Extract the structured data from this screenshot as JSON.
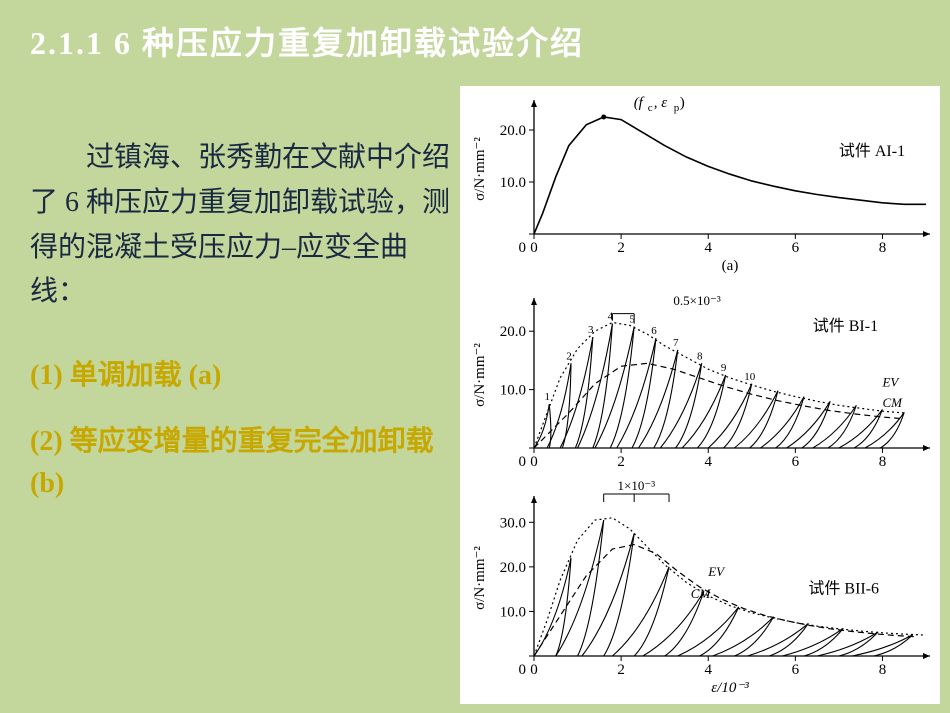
{
  "title": "2.1.1  6 种压应力重复加卸载试验介绍",
  "intro": "过镇海、张秀勤在文献中介绍了 6 种压应力重复加卸载试验，测得的混凝土受压应力–应变全曲线：",
  "item1": "(1) 单调加载 (a)",
  "item2": "(2) 等应变增量的重复完全加卸载 (b)",
  "colors": {
    "slide_bg": "#c3d69b",
    "title_color": "#ffffff",
    "body_color": "#1a2942",
    "item_color": "#c7a800",
    "chart_bg": "#ffffff",
    "axis_color": "#000000",
    "curve_color": "#000000"
  },
  "chart_a": {
    "type": "line",
    "specimen_label": "试件 AI-1",
    "peak_label": "(f_c, ε_p)",
    "sub_label": "(a)",
    "ylabel": "σ/N·mm⁻²",
    "xlim": [
      0,
      9
    ],
    "ylim": [
      0,
      25
    ],
    "xticks": [
      0,
      2,
      4,
      6,
      8
    ],
    "yticks": [
      0,
      10.0,
      20.0
    ],
    "ytick_labels": [
      "0",
      "10.0",
      "20.0"
    ],
    "curve": [
      [
        0,
        0
      ],
      [
        0.2,
        4
      ],
      [
        0.5,
        11
      ],
      [
        0.8,
        17
      ],
      [
        1.2,
        21
      ],
      [
        1.6,
        22.5
      ],
      [
        2.0,
        22
      ],
      [
        2.5,
        19.5
      ],
      [
        3.0,
        17
      ],
      [
        3.5,
        14.8
      ],
      [
        4.0,
        13
      ],
      [
        4.5,
        11.5
      ],
      [
        5.0,
        10.2
      ],
      [
        5.5,
        9.2
      ],
      [
        6.0,
        8.3
      ],
      [
        6.5,
        7.6
      ],
      [
        7.0,
        7.0
      ],
      [
        7.5,
        6.5
      ],
      [
        8.0,
        6.0
      ],
      [
        8.5,
        5.7
      ],
      [
        9.0,
        5.7
      ]
    ],
    "peak_marker": [
      1.6,
      22.5
    ]
  },
  "chart_b": {
    "type": "line",
    "specimen_label": "试件 BI-1",
    "ylabel": "σ/N·mm⁻²",
    "xlim": [
      0,
      9
    ],
    "ylim": [
      0,
      25
    ],
    "xticks": [
      0,
      2,
      4,
      6,
      8
    ],
    "yticks": [
      0,
      10.0,
      20.0
    ],
    "ytick_labels": [
      "0",
      "10.0",
      "20.0"
    ],
    "increment_label": "0.5×10⁻³",
    "ev_label": "EV",
    "cm_label": "CM",
    "envelope": [
      [
        0,
        0
      ],
      [
        0.3,
        6
      ],
      [
        0.6,
        12
      ],
      [
        1.0,
        17
      ],
      [
        1.4,
        20
      ],
      [
        1.8,
        21.5
      ],
      [
        2.2,
        21
      ],
      [
        2.6,
        19.5
      ],
      [
        3.0,
        17.5
      ],
      [
        3.5,
        15.5
      ],
      [
        4.0,
        13.5
      ],
      [
        4.5,
        12
      ],
      [
        5.0,
        10.8
      ],
      [
        5.5,
        9.7
      ],
      [
        6.0,
        8.8
      ],
      [
        6.5,
        8.0
      ],
      [
        7.0,
        7.3
      ],
      [
        7.5,
        6.8
      ],
      [
        8.0,
        6.3
      ],
      [
        8.5,
        6.0
      ]
    ],
    "cm_curve": [
      [
        0,
        0
      ],
      [
        0.8,
        6
      ],
      [
        1.4,
        11
      ],
      [
        2.0,
        14
      ],
      [
        2.6,
        14.5
      ],
      [
        3.2,
        13.5
      ],
      [
        3.8,
        12
      ],
      [
        4.4,
        10.5
      ],
      [
        5.0,
        9.2
      ],
      [
        5.6,
        8.1
      ],
      [
        6.2,
        7.2
      ],
      [
        6.8,
        6.4
      ],
      [
        7.4,
        5.8
      ],
      [
        8.0,
        5.3
      ],
      [
        8.5,
        5.0
      ]
    ],
    "cycles": [
      {
        "base": 0.0,
        "peak_x": 0.35,
        "peak_y": 7.5,
        "n": "1"
      },
      {
        "base": 0.3,
        "peak_x": 0.85,
        "peak_y": 14.5,
        "n": "2"
      },
      {
        "base": 0.6,
        "peak_x": 1.35,
        "peak_y": 19.0,
        "n": "3"
      },
      {
        "base": 1.0,
        "peak_x": 1.8,
        "peak_y": 21.3,
        "n": "4"
      },
      {
        "base": 1.4,
        "peak_x": 2.3,
        "peak_y": 20.8,
        "n": "5"
      },
      {
        "base": 1.9,
        "peak_x": 2.8,
        "peak_y": 18.8,
        "n": "6"
      },
      {
        "base": 2.4,
        "peak_x": 3.3,
        "peak_y": 16.8,
        "n": "7"
      },
      {
        "base": 2.9,
        "peak_x": 3.85,
        "peak_y": 14.5,
        "n": "8"
      },
      {
        "base": 3.4,
        "peak_x": 4.4,
        "peak_y": 12.5,
        "n": "9"
      },
      {
        "base": 4.0,
        "peak_x": 5.0,
        "peak_y": 11.0,
        "n": "10"
      },
      {
        "base": 4.6,
        "peak_x": 5.6,
        "peak_y": 9.8,
        "n": ""
      },
      {
        "base": 5.2,
        "peak_x": 6.2,
        "peak_y": 8.8,
        "n": ""
      },
      {
        "base": 5.8,
        "peak_x": 6.8,
        "peak_y": 8.0,
        "n": ""
      },
      {
        "base": 6.4,
        "peak_x": 7.4,
        "peak_y": 7.3,
        "n": ""
      },
      {
        "base": 7.0,
        "peak_x": 8.0,
        "peak_y": 6.6,
        "n": ""
      },
      {
        "base": 7.6,
        "peak_x": 8.5,
        "peak_y": 6.1,
        "n": ""
      }
    ]
  },
  "chart_c": {
    "type": "line",
    "specimen_label": "试件 BII-6",
    "ylabel": "σ/N·mm⁻²",
    "xlabel": "ε/10⁻³",
    "xlim": [
      0,
      9
    ],
    "ylim": [
      0,
      35
    ],
    "xticks": [
      0,
      2,
      4,
      6,
      8
    ],
    "yticks": [
      0,
      10.0,
      20.0,
      30.0
    ],
    "ytick_labels": [
      "0",
      "10.0",
      "20.0",
      "30.0"
    ],
    "increment_label": "1×10⁻³",
    "ev_label": "EV",
    "cm_label": "CM",
    "envelope": [
      [
        0,
        0
      ],
      [
        0.3,
        8
      ],
      [
        0.6,
        17
      ],
      [
        1.0,
        26
      ],
      [
        1.4,
        30.5
      ],
      [
        1.8,
        31
      ],
      [
        2.2,
        28.5
      ],
      [
        2.6,
        24.5
      ],
      [
        3.0,
        20.5
      ],
      [
        3.5,
        16.5
      ],
      [
        4.0,
        13.5
      ],
      [
        4.5,
        11.3
      ],
      [
        5.0,
        9.7
      ],
      [
        5.5,
        8.5
      ],
      [
        6.0,
        7.5
      ],
      [
        6.5,
        6.7
      ],
      [
        7.0,
        6.1
      ],
      [
        7.5,
        5.6
      ],
      [
        8.0,
        5.2
      ],
      [
        8.5,
        4.9
      ],
      [
        9.0,
        4.7
      ]
    ],
    "cm_curve": [
      [
        0,
        0
      ],
      [
        0.6,
        9
      ],
      [
        1.2,
        18
      ],
      [
        1.8,
        24
      ],
      [
        2.3,
        25
      ],
      [
        2.8,
        23
      ],
      [
        3.3,
        19
      ],
      [
        3.8,
        15.5
      ],
      [
        4.3,
        12.8
      ],
      [
        4.8,
        10.7
      ],
      [
        5.3,
        9.1
      ],
      [
        5.8,
        7.9
      ],
      [
        6.3,
        6.9
      ],
      [
        6.8,
        6.1
      ],
      [
        7.3,
        5.5
      ],
      [
        7.8,
        5.0
      ],
      [
        8.3,
        4.6
      ],
      [
        8.8,
        4.3
      ]
    ],
    "cycles": [
      {
        "base": 0.0,
        "peak_x": 0.85,
        "peak_y": 22.0
      },
      {
        "base": 0.5,
        "peak_x": 1.6,
        "peak_y": 30.5
      },
      {
        "base": 1.1,
        "peak_x": 2.3,
        "peak_y": 27.5
      },
      {
        "base": 1.8,
        "peak_x": 3.1,
        "peak_y": 20.0
      },
      {
        "base": 2.5,
        "peak_x": 3.9,
        "peak_y": 14.5
      },
      {
        "base": 3.3,
        "peak_x": 4.7,
        "peak_y": 11.0
      },
      {
        "base": 4.1,
        "peak_x": 5.5,
        "peak_y": 8.8
      },
      {
        "base": 4.9,
        "peak_x": 6.3,
        "peak_y": 7.3
      },
      {
        "base": 5.7,
        "peak_x": 7.1,
        "peak_y": 6.2
      },
      {
        "base": 6.5,
        "peak_x": 7.9,
        "peak_y": 5.4
      },
      {
        "base": 7.3,
        "peak_x": 8.7,
        "peak_y": 4.8
      }
    ],
    "bracket_x": [
      1.6,
      2.3,
      3.1
    ]
  }
}
